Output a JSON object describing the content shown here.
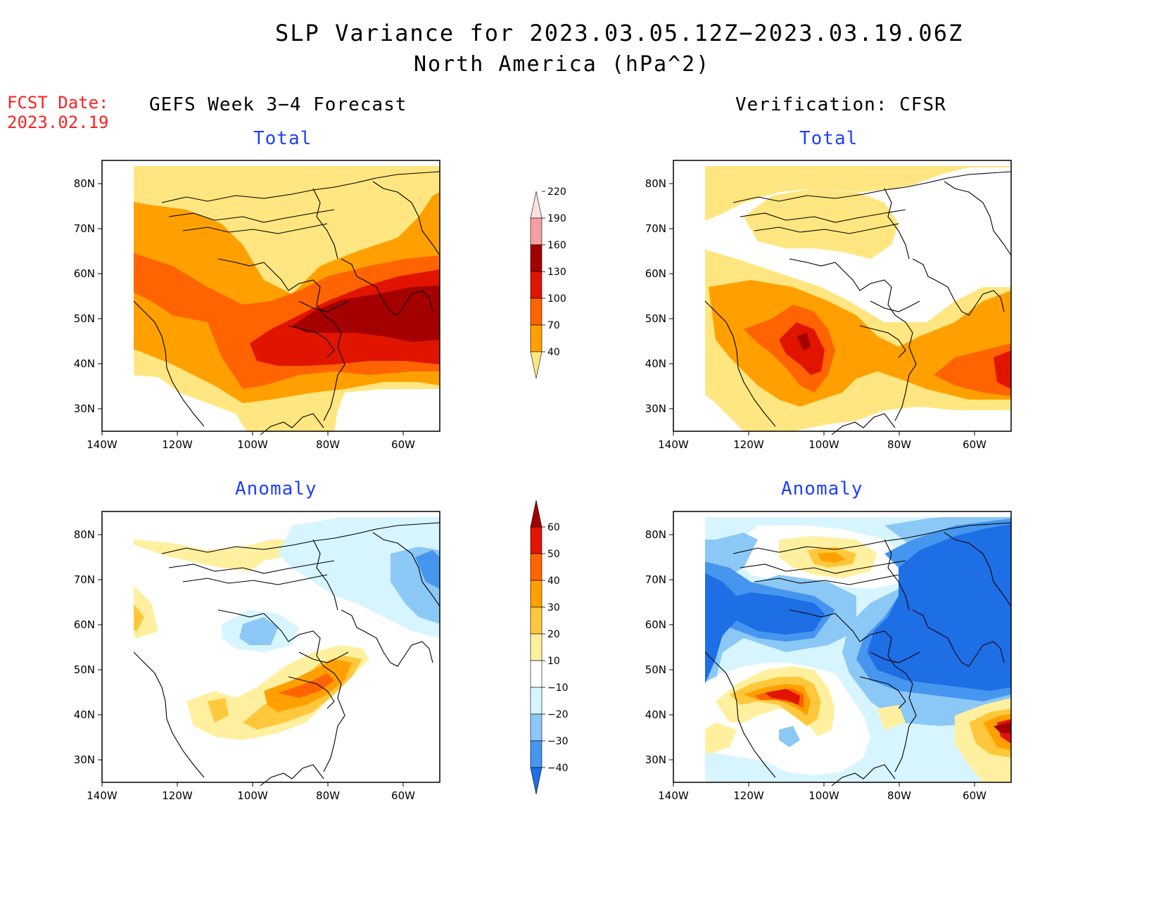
{
  "title": "SLP Variance for 2023.03.05.12Z−2023.03.19.06Z",
  "subtitle": "North America (hPa^2)",
  "fcst_date": {
    "label": "FCST Date:",
    "value": "2023.02.19"
  },
  "columns": {
    "left": "GEFS Week 3−4 Forecast",
    "right": "Verification: CFSR"
  },
  "panels": {
    "fc_total": "Total",
    "fc_anom": "Anomaly",
    "ver_total": "Total",
    "ver_anom": "Anomaly"
  },
  "lat_ticks": [
    "30N",
    "40N",
    "50N",
    "60N",
    "70N",
    "80N"
  ],
  "lon_ticks": [
    "140W",
    "120W",
    "100W",
    "80W",
    "60W"
  ],
  "colorbar_total": {
    "labels": [
      "40",
      "70",
      "100",
      "130",
      "160",
      "190",
      "220"
    ],
    "colors": [
      "#ffe680",
      "#ffa000",
      "#ff6400",
      "#e11400",
      "#a50000",
      "#f5a0a0",
      "#ffe0e0"
    ]
  },
  "colorbar_anomaly": {
    "labels": [
      "−40",
      "−30",
      "−20",
      "−10",
      "10",
      "20",
      "30",
      "40",
      "50",
      "60"
    ],
    "colors": [
      "#1e6ee6",
      "#4696f0",
      "#8cc8f5",
      "#d7f5ff",
      "#ffffff",
      "#fff0a0",
      "#ffc83c",
      "#ffa000",
      "#ff6400",
      "#e11400",
      "#a50000"
    ]
  },
  "palette": {
    "white": "#ffffff",
    "y1": "#ffe680",
    "o1": "#ffa000",
    "o2": "#ff6400",
    "r1": "#e11400",
    "r2": "#a50000",
    "ly": "#fff0a0",
    "ly2": "#ffc83c",
    "b1": "#d7f5ff",
    "b2": "#8cc8f5",
    "b3": "#4696f0",
    "b4": "#1e6ee6"
  }
}
